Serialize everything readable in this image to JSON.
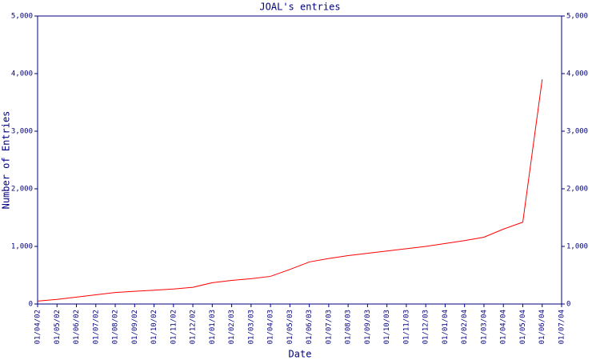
{
  "chart_data": {
    "type": "line",
    "title": "JOAL's entries",
    "xlabel": "Date",
    "ylabel": "Number of Entries",
    "categories": [
      "01/04/02",
      "01/05/02",
      "01/06/02",
      "01/07/02",
      "01/08/02",
      "01/09/02",
      "01/10/02",
      "01/11/02",
      "01/12/02",
      "01/01/03",
      "01/02/03",
      "01/03/03",
      "01/04/03",
      "01/05/03",
      "01/06/03",
      "01/07/03",
      "01/08/03",
      "01/09/03",
      "01/10/03",
      "01/11/03",
      "01/12/03",
      "01/01/04",
      "01/02/04",
      "01/03/04",
      "01/04/04",
      "01/05/04",
      "01/06/04",
      "01/07/04"
    ],
    "series": [
      {
        "name": "entries",
        "color": "#ff0000",
        "values": [
          50,
          80,
          120,
          160,
          200,
          220,
          240,
          260,
          290,
          370,
          410,
          440,
          480,
          600,
          730,
          790,
          840,
          880,
          920,
          960,
          1000,
          1050,
          1100,
          1160,
          1300,
          1420,
          3900,
          null
        ]
      }
    ],
    "ylim": [
      0,
      5000
    ],
    "yticks": [
      0,
      {
        "value": 1000,
        "label": "1,000"
      },
      {
        "value": 2000,
        "label": "2,000"
      },
      {
        "value": 3000,
        "label": "3,000"
      },
      {
        "value": 4000,
        "label": "4,000"
      },
      {
        "value": 5000,
        "label": "5,000"
      }
    ],
    "axis_color": "#000080"
  }
}
